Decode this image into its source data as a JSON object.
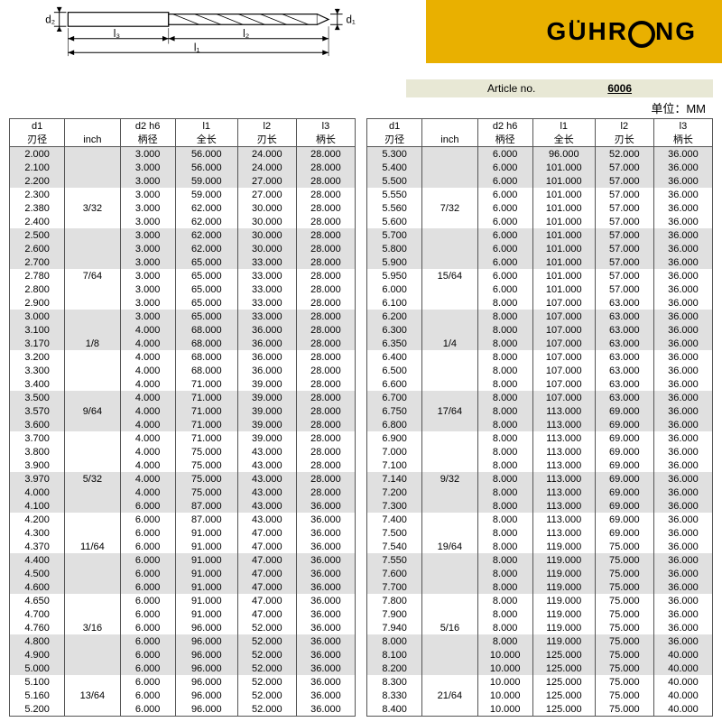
{
  "logo": "GUHRING",
  "article_label": "Article no.",
  "article_no": "6006",
  "unit_label": "单位：MM",
  "diagram_labels": {
    "d1": "d₁",
    "d2": "d₂",
    "l1": "l₁",
    "l2": "l₂",
    "l3": "l₃"
  },
  "headers_top": [
    "d1",
    "",
    "d2 h6",
    "l1",
    "l2",
    "l3"
  ],
  "headers_cn": [
    "刃径",
    "inch",
    "柄径",
    "全长",
    "刃长",
    "柄长"
  ],
  "colors": {
    "band": "#e0e0e0",
    "bg": "#ffffff",
    "border": "#555555",
    "logo_bg": "#e9b000"
  },
  "left_rows": [
    [
      "2.000",
      "",
      "3.000",
      "56.000",
      "24.000",
      "28.000",
      1
    ],
    [
      "2.100",
      "",
      "3.000",
      "56.000",
      "24.000",
      "28.000",
      1
    ],
    [
      "2.200",
      "",
      "3.000",
      "59.000",
      "27.000",
      "28.000",
      1
    ],
    [
      "2.300",
      "",
      "3.000",
      "59.000",
      "27.000",
      "28.000",
      0
    ],
    [
      "2.380",
      "3/32",
      "3.000",
      "62.000",
      "30.000",
      "28.000",
      0
    ],
    [
      "2.400",
      "",
      "3.000",
      "62.000",
      "30.000",
      "28.000",
      0
    ],
    [
      "2.500",
      "",
      "3.000",
      "62.000",
      "30.000",
      "28.000",
      1
    ],
    [
      "2.600",
      "",
      "3.000",
      "62.000",
      "30.000",
      "28.000",
      1
    ],
    [
      "2.700",
      "",
      "3.000",
      "65.000",
      "33.000",
      "28.000",
      1
    ],
    [
      "2.780",
      "7/64",
      "3.000",
      "65.000",
      "33.000",
      "28.000",
      0
    ],
    [
      "2.800",
      "",
      "3.000",
      "65.000",
      "33.000",
      "28.000",
      0
    ],
    [
      "2.900",
      "",
      "3.000",
      "65.000",
      "33.000",
      "28.000",
      0
    ],
    [
      "3.000",
      "",
      "3.000",
      "65.000",
      "33.000",
      "28.000",
      1
    ],
    [
      "3.100",
      "",
      "4.000",
      "68.000",
      "36.000",
      "28.000",
      1
    ],
    [
      "3.170",
      "1/8",
      "4.000",
      "68.000",
      "36.000",
      "28.000",
      1
    ],
    [
      "3.200",
      "",
      "4.000",
      "68.000",
      "36.000",
      "28.000",
      0
    ],
    [
      "3.300",
      "",
      "4.000",
      "68.000",
      "36.000",
      "28.000",
      0
    ],
    [
      "3.400",
      "",
      "4.000",
      "71.000",
      "39.000",
      "28.000",
      0
    ],
    [
      "3.500",
      "",
      "4.000",
      "71.000",
      "39.000",
      "28.000",
      1
    ],
    [
      "3.570",
      "9/64",
      "4.000",
      "71.000",
      "39.000",
      "28.000",
      1
    ],
    [
      "3.600",
      "",
      "4.000",
      "71.000",
      "39.000",
      "28.000",
      1
    ],
    [
      "3.700",
      "",
      "4.000",
      "71.000",
      "39.000",
      "28.000",
      0
    ],
    [
      "3.800",
      "",
      "4.000",
      "75.000",
      "43.000",
      "28.000",
      0
    ],
    [
      "3.900",
      "",
      "4.000",
      "75.000",
      "43.000",
      "28.000",
      0
    ],
    [
      "3.970",
      "5/32",
      "4.000",
      "75.000",
      "43.000",
      "28.000",
      1
    ],
    [
      "4.000",
      "",
      "4.000",
      "75.000",
      "43.000",
      "28.000",
      1
    ],
    [
      "4.100",
      "",
      "6.000",
      "87.000",
      "43.000",
      "36.000",
      1
    ],
    [
      "4.200",
      "",
      "6.000",
      "87.000",
      "43.000",
      "36.000",
      0
    ],
    [
      "4.300",
      "",
      "6.000",
      "91.000",
      "47.000",
      "36.000",
      0
    ],
    [
      "4.370",
      "11/64",
      "6.000",
      "91.000",
      "47.000",
      "36.000",
      0
    ],
    [
      "4.400",
      "",
      "6.000",
      "91.000",
      "47.000",
      "36.000",
      1
    ],
    [
      "4.500",
      "",
      "6.000",
      "91.000",
      "47.000",
      "36.000",
      1
    ],
    [
      "4.600",
      "",
      "6.000",
      "91.000",
      "47.000",
      "36.000",
      1
    ],
    [
      "4.650",
      "",
      "6.000",
      "91.000",
      "47.000",
      "36.000",
      0
    ],
    [
      "4.700",
      "",
      "6.000",
      "91.000",
      "47.000",
      "36.000",
      0
    ],
    [
      "4.760",
      "3/16",
      "6.000",
      "96.000",
      "52.000",
      "36.000",
      0
    ],
    [
      "4.800",
      "",
      "6.000",
      "96.000",
      "52.000",
      "36.000",
      1
    ],
    [
      "4.900",
      "",
      "6.000",
      "96.000",
      "52.000",
      "36.000",
      1
    ],
    [
      "5.000",
      "",
      "6.000",
      "96.000",
      "52.000",
      "36.000",
      1
    ],
    [
      "5.100",
      "",
      "6.000",
      "96.000",
      "52.000",
      "36.000",
      0
    ],
    [
      "5.160",
      "13/64",
      "6.000",
      "96.000",
      "52.000",
      "36.000",
      0
    ],
    [
      "5.200",
      "",
      "6.000",
      "96.000",
      "52.000",
      "36.000",
      0
    ]
  ],
  "right_rows": [
    [
      "5.300",
      "",
      "6.000",
      "96.000",
      "52.000",
      "36.000",
      1
    ],
    [
      "5.400",
      "",
      "6.000",
      "101.000",
      "57.000",
      "36.000",
      1
    ],
    [
      "5.500",
      "",
      "6.000",
      "101.000",
      "57.000",
      "36.000",
      1
    ],
    [
      "5.550",
      "",
      "6.000",
      "101.000",
      "57.000",
      "36.000",
      0
    ],
    [
      "5.560",
      "7/32",
      "6.000",
      "101.000",
      "57.000",
      "36.000",
      0
    ],
    [
      "5.600",
      "",
      "6.000",
      "101.000",
      "57.000",
      "36.000",
      0
    ],
    [
      "5.700",
      "",
      "6.000",
      "101.000",
      "57.000",
      "36.000",
      1
    ],
    [
      "5.800",
      "",
      "6.000",
      "101.000",
      "57.000",
      "36.000",
      1
    ],
    [
      "5.900",
      "",
      "6.000",
      "101.000",
      "57.000",
      "36.000",
      1
    ],
    [
      "5.950",
      "15/64",
      "6.000",
      "101.000",
      "57.000",
      "36.000",
      0
    ],
    [
      "6.000",
      "",
      "6.000",
      "101.000",
      "57.000",
      "36.000",
      0
    ],
    [
      "6.100",
      "",
      "8.000",
      "107.000",
      "63.000",
      "36.000",
      0
    ],
    [
      "6.200",
      "",
      "8.000",
      "107.000",
      "63.000",
      "36.000",
      1
    ],
    [
      "6.300",
      "",
      "8.000",
      "107.000",
      "63.000",
      "36.000",
      1
    ],
    [
      "6.350",
      "1/4",
      "8.000",
      "107.000",
      "63.000",
      "36.000",
      1
    ],
    [
      "6.400",
      "",
      "8.000",
      "107.000",
      "63.000",
      "36.000",
      0
    ],
    [
      "6.500",
      "",
      "8.000",
      "107.000",
      "63.000",
      "36.000",
      0
    ],
    [
      "6.600",
      "",
      "8.000",
      "107.000",
      "63.000",
      "36.000",
      0
    ],
    [
      "6.700",
      "",
      "8.000",
      "107.000",
      "63.000",
      "36.000",
      1
    ],
    [
      "6.750",
      "17/64",
      "8.000",
      "113.000",
      "69.000",
      "36.000",
      1
    ],
    [
      "6.800",
      "",
      "8.000",
      "113.000",
      "69.000",
      "36.000",
      1
    ],
    [
      "6.900",
      "",
      "8.000",
      "113.000",
      "69.000",
      "36.000",
      0
    ],
    [
      "7.000",
      "",
      "8.000",
      "113.000",
      "69.000",
      "36.000",
      0
    ],
    [
      "7.100",
      "",
      "8.000",
      "113.000",
      "69.000",
      "36.000",
      0
    ],
    [
      "7.140",
      "9/32",
      "8.000",
      "113.000",
      "69.000",
      "36.000",
      1
    ],
    [
      "7.200",
      "",
      "8.000",
      "113.000",
      "69.000",
      "36.000",
      1
    ],
    [
      "7.300",
      "",
      "8.000",
      "113.000",
      "69.000",
      "36.000",
      1
    ],
    [
      "7.400",
      "",
      "8.000",
      "113.000",
      "69.000",
      "36.000",
      0
    ],
    [
      "7.500",
      "",
      "8.000",
      "113.000",
      "69.000",
      "36.000",
      0
    ],
    [
      "7.540",
      "19/64",
      "8.000",
      "119.000",
      "75.000",
      "36.000",
      0
    ],
    [
      "7.550",
      "",
      "8.000",
      "119.000",
      "75.000",
      "36.000",
      1
    ],
    [
      "7.600",
      "",
      "8.000",
      "119.000",
      "75.000",
      "36.000",
      1
    ],
    [
      "7.700",
      "",
      "8.000",
      "119.000",
      "75.000",
      "36.000",
      1
    ],
    [
      "7.800",
      "",
      "8.000",
      "119.000",
      "75.000",
      "36.000",
      0
    ],
    [
      "7.900",
      "",
      "8.000",
      "119.000",
      "75.000",
      "36.000",
      0
    ],
    [
      "7.940",
      "5/16",
      "8.000",
      "119.000",
      "75.000",
      "36.000",
      0
    ],
    [
      "8.000",
      "",
      "8.000",
      "119.000",
      "75.000",
      "36.000",
      1
    ],
    [
      "8.100",
      "",
      "10.000",
      "125.000",
      "75.000",
      "40.000",
      1
    ],
    [
      "8.200",
      "",
      "10.000",
      "125.000",
      "75.000",
      "40.000",
      1
    ],
    [
      "8.300",
      "",
      "10.000",
      "125.000",
      "75.000",
      "40.000",
      0
    ],
    [
      "8.330",
      "21/64",
      "10.000",
      "125.000",
      "75.000",
      "40.000",
      0
    ],
    [
      "8.400",
      "",
      "10.000",
      "125.000",
      "75.000",
      "40.000",
      0
    ]
  ]
}
